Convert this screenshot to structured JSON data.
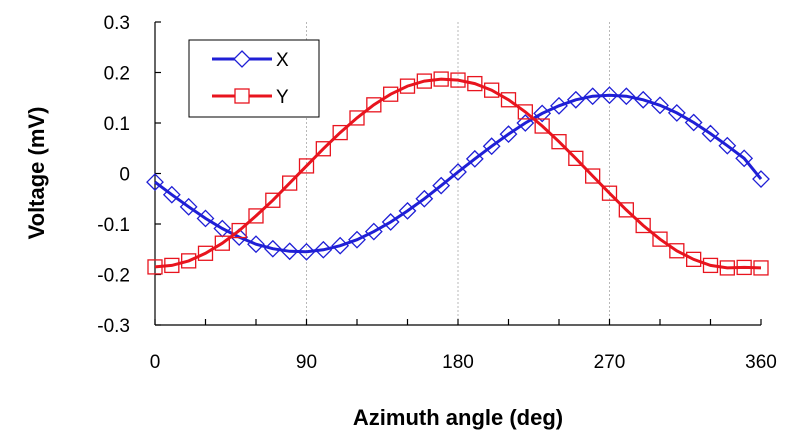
{
  "chart_data": {
    "type": "line",
    "title": "",
    "xlabel": "Azimuth angle (deg)",
    "ylabel": "Voltage (mV)",
    "xlim": [
      0,
      360
    ],
    "ylim": [
      -0.3,
      0.3
    ],
    "xticks": [
      0,
      90,
      180,
      270,
      360
    ],
    "xtick_labels": [
      "0",
      "90",
      "180",
      "270",
      "360"
    ],
    "yticks": [
      -0.3,
      -0.2,
      -0.1,
      0,
      0.1,
      0.2,
      0.3
    ],
    "ytick_labels": [
      "-0.3",
      "-0.2",
      "-0.1",
      "0",
      "0.1",
      "0.2",
      "0.3"
    ],
    "vertical_gridlines": [
      90,
      180,
      270
    ],
    "legend_position": "top-left",
    "series": [
      {
        "name": "X",
        "color": "#1f1fd6",
        "marker": "diamond",
        "x": [
          0,
          10,
          20,
          30,
          40,
          50,
          60,
          70,
          80,
          90,
          100,
          110,
          120,
          130,
          140,
          150,
          160,
          170,
          180,
          190,
          200,
          210,
          220,
          230,
          240,
          250,
          260,
          270,
          280,
          290,
          300,
          310,
          320,
          330,
          340,
          350,
          360
        ],
        "y": [
          -0.017,
          -0.042,
          -0.066,
          -0.089,
          -0.109,
          -0.126,
          -0.14,
          -0.149,
          -0.154,
          -0.155,
          -0.151,
          -0.143,
          -0.131,
          -0.115,
          -0.096,
          -0.074,
          -0.05,
          -0.024,
          0.003,
          0.029,
          0.054,
          0.078,
          0.1,
          0.119,
          0.134,
          0.146,
          0.153,
          0.155,
          0.153,
          0.146,
          0.135,
          0.12,
          0.101,
          0.079,
          0.055,
          0.03,
          -0.011
        ]
      },
      {
        "name": "Y",
        "color": "#e8141e",
        "marker": "square",
        "x": [
          0,
          10,
          20,
          30,
          40,
          50,
          60,
          70,
          80,
          90,
          100,
          110,
          120,
          130,
          140,
          150,
          160,
          170,
          180,
          190,
          200,
          210,
          220,
          230,
          240,
          250,
          260,
          270,
          280,
          290,
          300,
          310,
          320,
          330,
          340,
          350,
          360
        ],
        "y": [
          -0.185,
          -0.182,
          -0.173,
          -0.158,
          -0.138,
          -0.113,
          -0.084,
          -0.053,
          -0.019,
          0.015,
          0.049,
          0.081,
          0.11,
          0.136,
          0.157,
          0.173,
          0.183,
          0.187,
          0.185,
          0.178,
          0.165,
          0.146,
          0.122,
          0.094,
          0.063,
          0.03,
          -0.005,
          -0.039,
          -0.072,
          -0.103,
          -0.13,
          -0.153,
          -0.17,
          -0.182,
          -0.187,
          -0.186,
          -0.187
        ]
      }
    ]
  }
}
